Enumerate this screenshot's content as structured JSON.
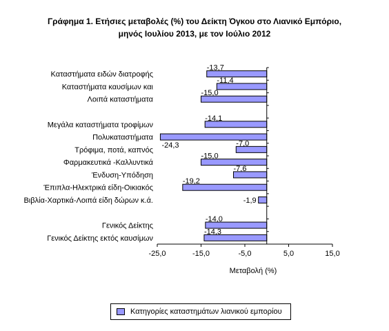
{
  "title_line1": "Γράφημα 1. Ετήσιες μεταβολές (%) του  Δείκτη Όγκου στο Λιανικό Εμπόριο,",
  "title_line2": "μηνός Ιουλίου  2013, με τον Ιούλιο 2012",
  "chart_data": {
    "type": "bar",
    "orientation": "horizontal",
    "title": "Γράφημα 1. Ετήσιες μεταβολές (%) του  Δείκτη Όγκου στο Λιανικό Εμπόριο, μηνός Ιουλίου  2013, με τον Ιούλιο 2012",
    "xlabel": "Μεταβολή (%)",
    "ylabel": "",
    "xlim": [
      -25,
      15
    ],
    "xticks": [
      -25,
      -15,
      -5,
      5,
      15
    ],
    "xtick_labels": [
      "-25,0",
      "-15,0",
      "-5,0",
      "5,0",
      "15,0"
    ],
    "grid": false,
    "legend_position": "bottom",
    "bar_color": "#9999ff",
    "series": [
      {
        "name": "Κατηγορίες καταστημάτων λιανικού εμπορίου",
        "categories": [
          "Καταστήματα ειδών διατροφής",
          "Καταστήματα  καυσίμων και",
          "Λοιπά καταστήματα",
          "",
          "Μεγάλα καταστήματα τροφίμων",
          "Πολυκαταστήματα",
          "Τρόφιμα, ποτά, καπνός",
          "Φαρμακευτικά -Καλλυντικά",
          "Ένδυση-Υπόδηση",
          "Έπιπλα-Ηλεκτρικά είδη-Οικιακός",
          "Βιβλία-Χαρτικά-Λοιπά είδη δώρων κ.ά.",
          "",
          "Γενικός Δείκτης",
          "Γενικός Δείκτης εκτός καυσίμων"
        ],
        "values": [
          -13.7,
          -11.4,
          -15.0,
          null,
          -14.1,
          -24.3,
          -7.0,
          -15.0,
          -7.6,
          -19.2,
          -1.9,
          null,
          -14.0,
          -14.3
        ],
        "value_labels": [
          "-13,7",
          "-11,4",
          "-15,0",
          "",
          "-14,1",
          "-24,3",
          "-7,0",
          "-15,0",
          "-7,6",
          "-19,2",
          "-1,9",
          "",
          "-14,0",
          "-14,3"
        ]
      }
    ]
  }
}
